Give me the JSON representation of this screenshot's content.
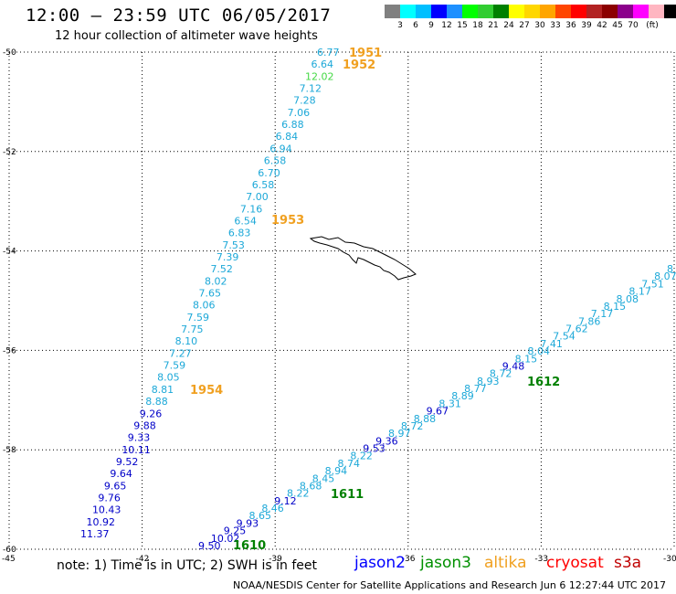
{
  "title": "12:00 – 23:59 UTC 06/05/2017",
  "subtitle": "12 hour collection of altimeter wave heights",
  "colorbar": {
    "unit": "(ft)",
    "colors": [
      "#808080",
      "#00ffff",
      "#00bfff",
      "#0000ff",
      "#1e90ff",
      "#00ff00",
      "#32cd32",
      "#008000",
      "#ffff00",
      "#ffd700",
      "#ffa500",
      "#ff4500",
      "#ff0000",
      "#b22222",
      "#8b0000",
      "#8b008b",
      "#ff00ff",
      "#ffb6c1",
      "#000000"
    ],
    "ticks": [
      "3",
      "6",
      "9",
      "12",
      "15",
      "18",
      "21",
      "24",
      "27",
      "30",
      "33",
      "36",
      "39",
      "42",
      "45",
      "70"
    ]
  },
  "map": {
    "lon_range": [
      -45,
      -30
    ],
    "lat_range": [
      -60,
      -50
    ],
    "lat_ticks": [
      "-50",
      "-52",
      "-54",
      "-56",
      "-58",
      "-60"
    ],
    "lon_ticks": [
      "-45",
      "-42",
      "-39",
      "-36",
      "-33",
      "-30"
    ],
    "lat_values": [
      -50,
      -52,
      -54,
      -56,
      -58,
      -60
    ],
    "lon_values": [
      -45,
      -42,
      -39,
      -36,
      -33,
      -30
    ]
  },
  "track_west": [
    {
      "v": "6.77",
      "c": "#1ca8d8"
    },
    {
      "v": "6.64",
      "c": "#1ca8d8"
    },
    {
      "v": "12.02",
      "c": "#44d844"
    },
    {
      "v": "7.12",
      "c": "#1ca8d8"
    },
    {
      "v": "7.28",
      "c": "#1ca8d8"
    },
    {
      "v": "7.06",
      "c": "#1ca8d8"
    },
    {
      "v": "6.88",
      "c": "#1ca8d8"
    },
    {
      "v": "6.84",
      "c": "#1ca8d8"
    },
    {
      "v": "6.94",
      "c": "#1ca8d8"
    },
    {
      "v": "6.58",
      "c": "#1ca8d8"
    },
    {
      "v": "6.70",
      "c": "#1ca8d8"
    },
    {
      "v": "6.58",
      "c": "#1ca8d8"
    },
    {
      "v": "7.00",
      "c": "#1ca8d8"
    },
    {
      "v": "7.16",
      "c": "#1ca8d8"
    },
    {
      "v": "6.54",
      "c": "#1ca8d8"
    },
    {
      "v": "6.83",
      "c": "#1ca8d8"
    },
    {
      "v": "7.53",
      "c": "#1ca8d8"
    },
    {
      "v": "7.39",
      "c": "#1ca8d8"
    },
    {
      "v": "7.52",
      "c": "#1ca8d8"
    },
    {
      "v": "8.02",
      "c": "#1ca8d8"
    },
    {
      "v": "7.65",
      "c": "#1ca8d8"
    },
    {
      "v": "8.06",
      "c": "#1ca8d8"
    },
    {
      "v": "7.59",
      "c": "#1ca8d8"
    },
    {
      "v": "7.75",
      "c": "#1ca8d8"
    },
    {
      "v": "8.10",
      "c": "#1ca8d8"
    },
    {
      "v": "7.27",
      "c": "#1ca8d8"
    },
    {
      "v": "7.59",
      "c": "#1ca8d8"
    },
    {
      "v": "8.05",
      "c": "#1ca8d8"
    },
    {
      "v": "8.81",
      "c": "#1ca8d8"
    },
    {
      "v": "8.88",
      "c": "#1ca8d8"
    },
    {
      "v": "9.26",
      "c": "#0000c8"
    },
    {
      "v": "9.88",
      "c": "#0000c8"
    },
    {
      "v": "9.33",
      "c": "#0000c8"
    },
    {
      "v": "10.11",
      "c": "#0000c8"
    },
    {
      "v": "9.52",
      "c": "#0000c8"
    },
    {
      "v": "9.64",
      "c": "#0000c8"
    },
    {
      "v": "9.65",
      "c": "#0000c8"
    },
    {
      "v": "9.76",
      "c": "#0000c8"
    },
    {
      "v": "10.43",
      "c": "#0000c8"
    },
    {
      "v": "10.92",
      "c": "#0000c8"
    },
    {
      "v": "11.37",
      "c": "#0000c8"
    }
  ],
  "track_east": [
    {
      "v": "9.50",
      "c": "#0000c8"
    },
    {
      "v": "10.02",
      "c": "#0000c8"
    },
    {
      "v": "9.25",
      "c": "#0000c8"
    },
    {
      "v": "9.93",
      "c": "#0000c8"
    },
    {
      "v": "8.65",
      "c": "#1ca8d8"
    },
    {
      "v": "8.46",
      "c": "#1ca8d8"
    },
    {
      "v": "9.12",
      "c": "#0000c8"
    },
    {
      "v": "8.22",
      "c": "#1ca8d8"
    },
    {
      "v": "8.68",
      "c": "#1ca8d8"
    },
    {
      "v": "8.45",
      "c": "#1ca8d8"
    },
    {
      "v": "8.94",
      "c": "#1ca8d8"
    },
    {
      "v": "8.74",
      "c": "#1ca8d8"
    },
    {
      "v": "8.22",
      "c": "#1ca8d8"
    },
    {
      "v": "9.53",
      "c": "#0000c8"
    },
    {
      "v": "9.36",
      "c": "#0000c8"
    },
    {
      "v": "8.97",
      "c": "#1ca8d8"
    },
    {
      "v": "8.72",
      "c": "#1ca8d8"
    },
    {
      "v": "8.88",
      "c": "#1ca8d8"
    },
    {
      "v": "9.67",
      "c": "#0000c8"
    },
    {
      "v": "8.31",
      "c": "#1ca8d8"
    },
    {
      "v": "8.89",
      "c": "#1ca8d8"
    },
    {
      "v": "8.77",
      "c": "#1ca8d8"
    },
    {
      "v": "8.93",
      "c": "#1ca8d8"
    },
    {
      "v": "8.72",
      "c": "#1ca8d8"
    },
    {
      "v": "9.48",
      "c": "#0000c8"
    },
    {
      "v": "8.15",
      "c": "#1ca8d8"
    },
    {
      "v": "8.04",
      "c": "#1ca8d8"
    },
    {
      "v": "7.41",
      "c": "#1ca8d8"
    },
    {
      "v": "7.54",
      "c": "#1ca8d8"
    },
    {
      "v": "7.62",
      "c": "#1ca8d8"
    },
    {
      "v": "7.86",
      "c": "#1ca8d8"
    },
    {
      "v": "7.17",
      "c": "#1ca8d8"
    },
    {
      "v": "8.15",
      "c": "#1ca8d8"
    },
    {
      "v": "8.08",
      "c": "#1ca8d8"
    },
    {
      "v": "8.17",
      "c": "#1ca8d8"
    },
    {
      "v": "7.51",
      "c": "#1ca8d8"
    },
    {
      "v": "8.07",
      "c": "#1ca8d8"
    },
    {
      "v": "8",
      "c": "#1ca8d8"
    }
  ],
  "pass_labels": [
    {
      "text": "1951",
      "c": "#f0a020"
    },
    {
      "text": "1952",
      "c": "#f0a020"
    },
    {
      "text": "1953",
      "c": "#f0a020"
    },
    {
      "text": "1954",
      "c": "#f0a020"
    },
    {
      "text": "1612",
      "c": "#008000"
    },
    {
      "text": "1611",
      "c": "#008000"
    },
    {
      "text": "1610",
      "c": "#008000"
    }
  ],
  "note": "note:  1) Time is in UTC;  2) SWH is in feet",
  "legend": [
    {
      "name": "jason2",
      "c": "#0000ff"
    },
    {
      "name": "jason3",
      "c": "#009000"
    },
    {
      "name": "altika",
      "c": "#f0a020"
    },
    {
      "name": "cryosat",
      "c": "#ff0000"
    },
    {
      "name": "s3a",
      "c": "#c00000"
    }
  ],
  "footer": "NOAA/NESDIS Center for Satellite Applications and Research    Jun  6 12:27:44 UTC 2017"
}
